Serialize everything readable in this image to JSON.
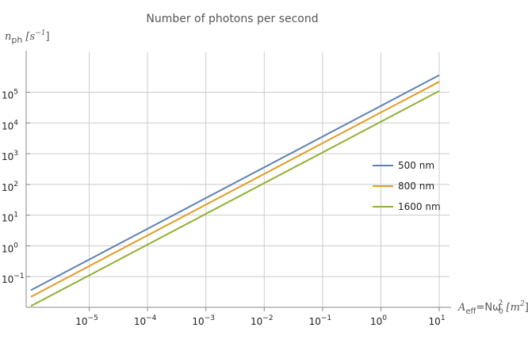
{
  "chart_data": {
    "type": "line",
    "title": "Number of photons per second",
    "ylabel": {
      "var": "n",
      "sub": "ph",
      "unit": "[s",
      "unit_exp": "−1",
      "unit_close": "]"
    },
    "xlabel": {
      "var": "A",
      "sub": "eff",
      "rest": "=Nω",
      "rest_sub": "0",
      "rest_sup": "2",
      "unit": " [m",
      "unit_exp": "2",
      "unit_close": "]"
    },
    "x_scale": "log",
    "y_scale": "log",
    "xlim": [
      8.3e-07,
      15
    ],
    "ylim": [
      0.01,
      2000000
    ],
    "grid": true,
    "legend_position": "right",
    "x_ticks": [
      {
        "value": 1e-05,
        "base": "10",
        "exp": "−5"
      },
      {
        "value": 0.0001,
        "base": "10",
        "exp": "−4"
      },
      {
        "value": 0.001,
        "base": "10",
        "exp": "−3"
      },
      {
        "value": 0.01,
        "base": "10",
        "exp": "−2"
      },
      {
        "value": 0.1,
        "base": "10",
        "exp": "−1"
      },
      {
        "value": 1,
        "base": "10",
        "exp": "0"
      },
      {
        "value": 10,
        "base": "10",
        "exp": "1"
      }
    ],
    "y_ticks": [
      {
        "value": 0.1,
        "base": "10",
        "exp": "−1"
      },
      {
        "value": 1,
        "base": "10",
        "exp": "0"
      },
      {
        "value": 10,
        "base": "10",
        "exp": "1"
      },
      {
        "value": 100,
        "base": "10",
        "exp": "2"
      },
      {
        "value": 1000,
        "base": "10",
        "exp": "3"
      },
      {
        "value": 10000,
        "base": "10",
        "exp": "4"
      },
      {
        "value": 100000,
        "base": "10",
        "exp": "5"
      }
    ],
    "series": [
      {
        "name": "500 nm",
        "color": "#5E81B5",
        "x": [
          1e-06,
          10
        ],
        "y": [
          0.036,
          360000
        ]
      },
      {
        "name": "800 nm",
        "color": "#E19C24",
        "x": [
          1e-06,
          10
        ],
        "y": [
          0.022,
          220000
        ]
      },
      {
        "name": "1600 nm",
        "color": "#8FB032",
        "x": [
          1e-06,
          10
        ],
        "y": [
          0.011,
          110000
        ]
      }
    ]
  }
}
